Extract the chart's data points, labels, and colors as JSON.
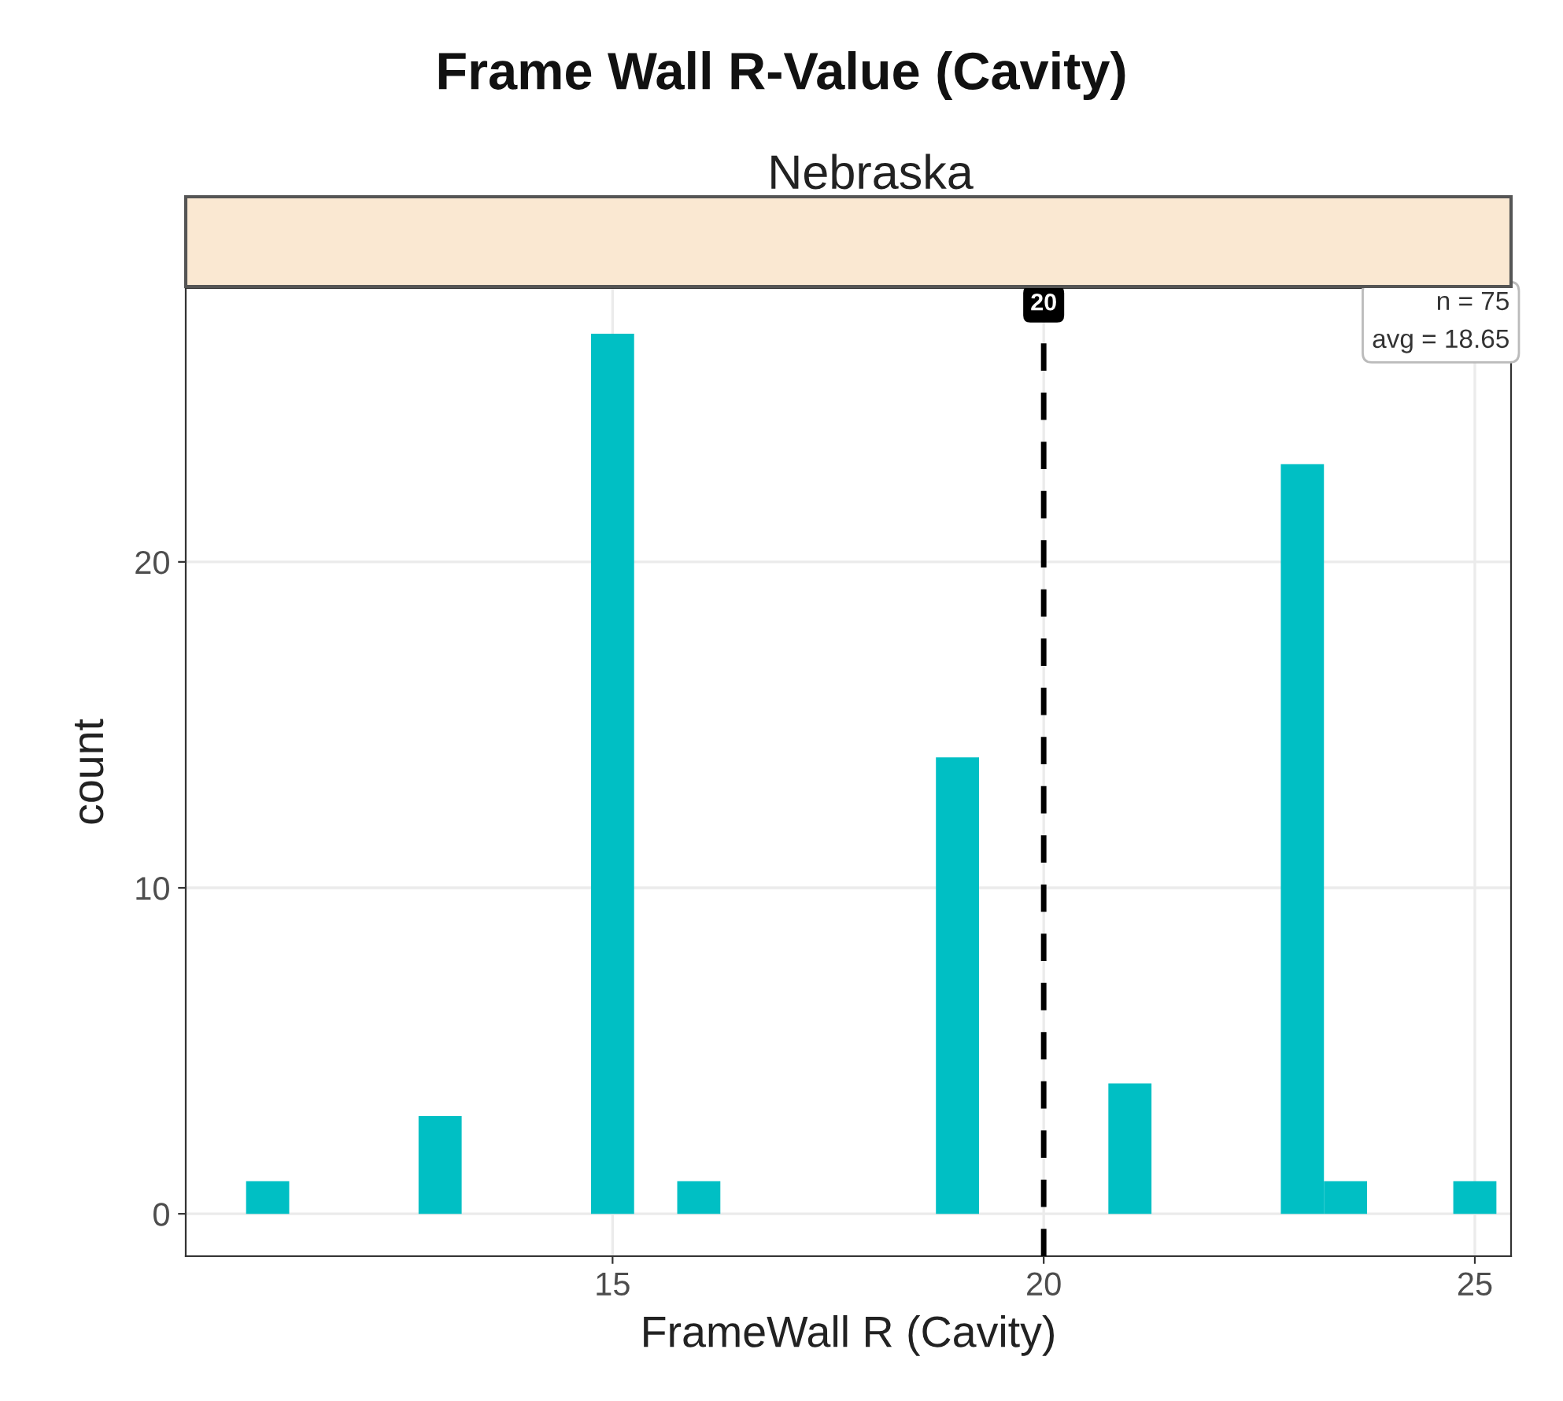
{
  "chart_data": {
    "type": "histogram",
    "title": "Frame Wall R-Value (Cavity)",
    "subtitle": "Nebraska",
    "xlabel": "FrameWall R (Cavity)",
    "ylabel": "count",
    "bins": [
      10.75,
      11.25,
      11.75,
      12.25,
      12.75,
      13.25,
      13.75,
      14.25,
      14.75,
      15.25,
      15.75,
      16.25,
      16.75,
      17.25,
      17.75,
      18.25,
      18.75,
      19.25,
      19.75,
      20.25,
      20.75,
      21.25,
      21.75,
      22.25,
      22.75,
      23.25,
      23.75,
      24.25,
      24.75,
      25.25
    ],
    "values": [
      1,
      0,
      0,
      0,
      3,
      0,
      0,
      0,
      27,
      0,
      1,
      0,
      0,
      0,
      0,
      0,
      14,
      0,
      0,
      0,
      4,
      0,
      0,
      0,
      23,
      1,
      0,
      0,
      1
    ],
    "color": "#00bfc4",
    "xlim": [
      10.05,
      25.42
    ],
    "ylim": [
      -1.3,
      28.4
    ],
    "xticks": [
      15,
      20,
      25
    ],
    "yticks": [
      0,
      10,
      20
    ],
    "ref_lines": [
      {
        "axis": "x",
        "value": 20,
        "label": "20",
        "color": "#000000",
        "line_style": "dashed"
      }
    ],
    "annotations": [
      "n = 75\navg = 18.65"
    ],
    "grid": true
  }
}
